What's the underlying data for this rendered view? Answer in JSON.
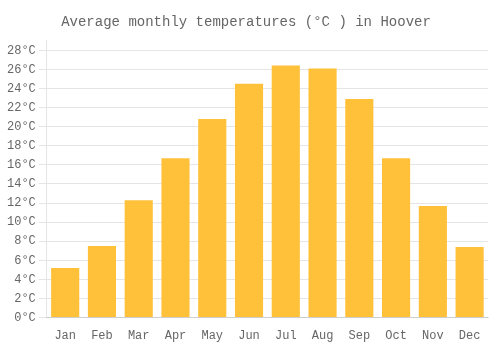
{
  "chart_data": {
    "type": "bar",
    "title": "Average monthly temperatures (°C ) in Hoover",
    "categories": [
      "Jan",
      "Feb",
      "Mar",
      "Apr",
      "May",
      "Jun",
      "Jul",
      "Aug",
      "Sep",
      "Oct",
      "Nov",
      "Dec"
    ],
    "values": [
      5.2,
      7.5,
      12.3,
      16.7,
      20.8,
      24.5,
      26.4,
      26.1,
      22.9,
      16.7,
      11.7,
      7.4
    ],
    "color": "#FFC03A",
    "ylim": [
      0,
      29
    ],
    "yticks": [
      {
        "value": 0,
        "label": "0°C"
      },
      {
        "value": 2,
        "label": "2°C"
      },
      {
        "value": 4,
        "label": "4°C"
      },
      {
        "value": 6,
        "label": "6°C"
      },
      {
        "value": 8,
        "label": "8°C"
      },
      {
        "value": 10,
        "label": "10°C"
      },
      {
        "value": 12,
        "label": "12°C"
      },
      {
        "value": 14,
        "label": "14°C"
      },
      {
        "value": 16,
        "label": "16°C"
      },
      {
        "value": 18,
        "label": "18°C"
      },
      {
        "value": 20,
        "label": "20°C"
      },
      {
        "value": 22,
        "label": "22°C"
      },
      {
        "value": 24,
        "label": "24°C"
      },
      {
        "value": 26,
        "label": "26°C"
      },
      {
        "value": 28,
        "label": "28°C"
      }
    ],
    "grid": true
  }
}
